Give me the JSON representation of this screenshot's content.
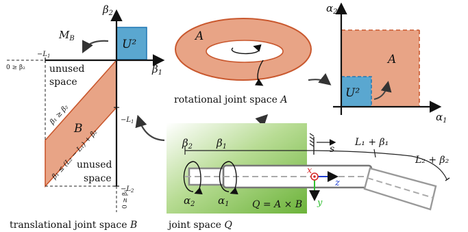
{
  "translational": {
    "beta2": "β",
    "beta2_sub": "2",
    "beta1": "β",
    "beta1_sub": "1",
    "neg_L1": "−L",
    "neg_L1_sub": "1",
    "neg_L2": "−L",
    "neg_L2_sub": "2",
    "zero_ge_beta2": "0 ≥ β₂",
    "zero_ge_beta1": "0 ≥ β₁",
    "map_label": "M",
    "map_label_sub": "B",
    "u2_label": "U²",
    "unused_top": "unused",
    "unused_top_2": "space",
    "unused_bottom": "unused",
    "unused_bottom_2": "space",
    "ineq_1": "β₁ ≥ β₂",
    "ineq_2": "β₁ ≤ (L₂ − L₁) + β₂",
    "set_label": "B",
    "caption": "translational joint space",
    "caption_symbol": "B"
  },
  "rotational": {
    "torus_label": "A",
    "caption": "rotational joint space",
    "caption_symbol": "A"
  },
  "angular": {
    "alpha2": "α",
    "alpha2_sub": "2",
    "alpha1": "α",
    "alpha1_sub": "1",
    "set_label": "A",
    "u2_label": "U²"
  },
  "robot": {
    "beta2": "β",
    "beta2_sub": "2",
    "beta1": "β",
    "beta1_sub": "1",
    "s_label": "s",
    "L1_label": "L₁ + β₁",
    "L2_label": "L₂ + β₂",
    "alpha2": "α",
    "alpha2_sub": "2",
    "alpha1": "α",
    "alpha1_sub": "1",
    "x_label": "x",
    "y_label": "y",
    "z_label": "z",
    "Q_def": "Q = A × B",
    "caption": "joint space",
    "caption_symbol": "Q"
  },
  "colors": {
    "salmon": "#e8a486",
    "salmon_edge": "#c9582e",
    "blue_fill": "#5aa7d0",
    "blue_edge": "#1f77b4",
    "green_dark": "#7fbf4f",
    "green_light": "#ffffff"
  }
}
